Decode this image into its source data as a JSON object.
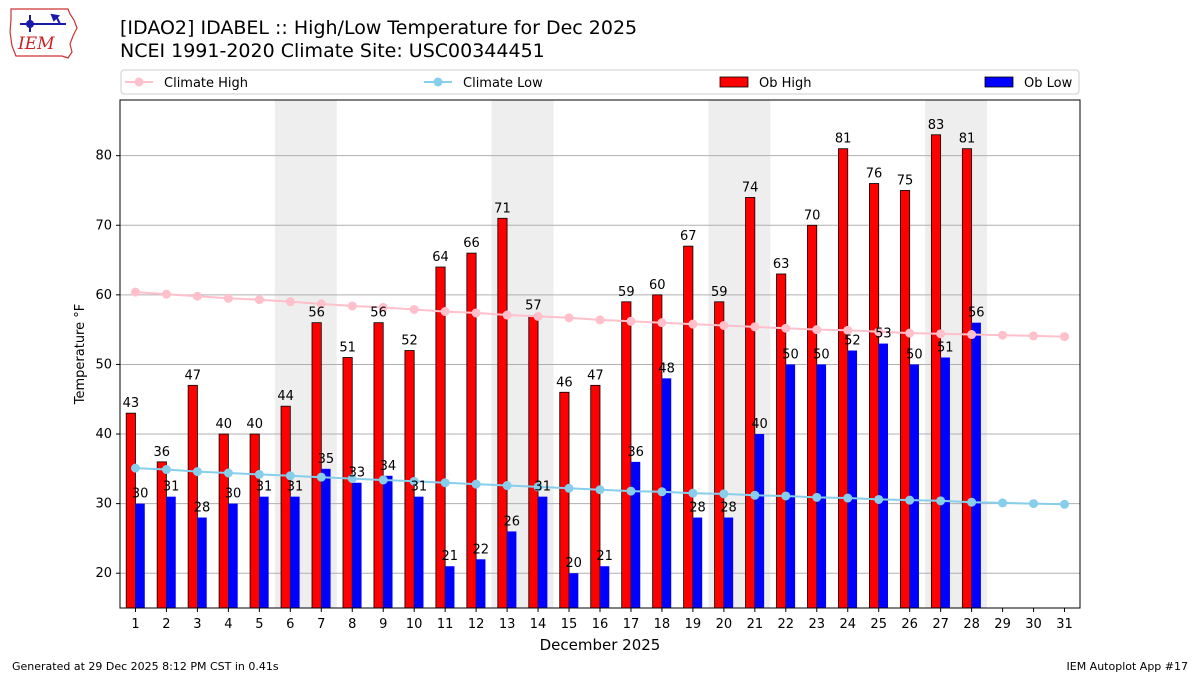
{
  "header": {
    "title_line1": "[IDAO2] IDABEL :: High/Low Temperature for Dec 2025",
    "title_line2": "NCEI 1991-2020 Climate Site: USC00344451"
  },
  "logo": {
    "text": "IEM"
  },
  "footer": {
    "generated": "Generated at 29 Dec 2025 8:12 PM CST in 0.41s",
    "app": "IEM Autoplot App #17"
  },
  "colors": {
    "ob_high": "#ff0000",
    "ob_low": "#0000ff",
    "climate_high": "#ffc0cb",
    "climate_low": "#87ceeb",
    "weekend_shade": "#eeeeee",
    "grid": "#b0b0b0"
  },
  "chart_data": {
    "type": "bar",
    "title": "[IDAO2] IDABEL :: High/Low Temperature for Dec 2025",
    "xlabel": "December 2025",
    "ylabel": "Temperature °F",
    "ylim": [
      15,
      88
    ],
    "yticks": [
      20,
      30,
      40,
      50,
      60,
      70,
      80
    ],
    "grid": "y",
    "categories": [
      "1",
      "2",
      "3",
      "4",
      "5",
      "6",
      "7",
      "8",
      "9",
      "10",
      "11",
      "12",
      "13",
      "14",
      "15",
      "16",
      "17",
      "18",
      "19",
      "20",
      "21",
      "22",
      "23",
      "24",
      "25",
      "26",
      "27",
      "28",
      "29",
      "30",
      "31"
    ],
    "shaded_days": [
      [
        6,
        7
      ],
      [
        13,
        14
      ],
      [
        20,
        21
      ],
      [
        27,
        28
      ]
    ],
    "series": [
      {
        "name": "Ob High",
        "kind": "bar",
        "values": [
          43,
          36,
          47,
          40,
          40,
          44,
          56,
          51,
          56,
          52,
          64,
          66,
          71,
          57,
          46,
          47,
          59,
          60,
          67,
          59,
          74,
          63,
          70,
          81,
          76,
          75,
          83,
          81,
          null,
          null,
          null
        ]
      },
      {
        "name": "Ob Low",
        "kind": "bar",
        "values": [
          30,
          31,
          28,
          30,
          31,
          31,
          35,
          33,
          34,
          31,
          21,
          22,
          26,
          31,
          20,
          21,
          36,
          48,
          28,
          28,
          40,
          50,
          50,
          52,
          53,
          50,
          51,
          56,
          null,
          null,
          null
        ]
      },
      {
        "name": "Climate High",
        "kind": "line",
        "values": [
          60.4,
          60.1,
          59.8,
          59.5,
          59.3,
          59.0,
          58.7,
          58.4,
          58.2,
          57.9,
          57.6,
          57.4,
          57.1,
          56.9,
          56.7,
          56.4,
          56.2,
          56.0,
          55.8,
          55.6,
          55.4,
          55.2,
          55.0,
          54.9,
          54.7,
          54.5,
          54.4,
          54.3,
          54.2,
          54.1,
          54.0
        ]
      },
      {
        "name": "Climate Low",
        "kind": "line",
        "values": [
          35.1,
          34.9,
          34.6,
          34.4,
          34.2,
          34.0,
          33.8,
          33.6,
          33.4,
          33.2,
          33.0,
          32.8,
          32.6,
          32.4,
          32.2,
          32.0,
          31.8,
          31.7,
          31.5,
          31.4,
          31.2,
          31.1,
          30.9,
          30.8,
          30.6,
          30.5,
          30.4,
          30.2,
          30.1,
          30.0,
          29.9
        ]
      }
    ],
    "legend": {
      "placement": "top",
      "entries": [
        "Climate High",
        "Climate Low",
        "Ob High",
        "Ob Low"
      ]
    }
  }
}
